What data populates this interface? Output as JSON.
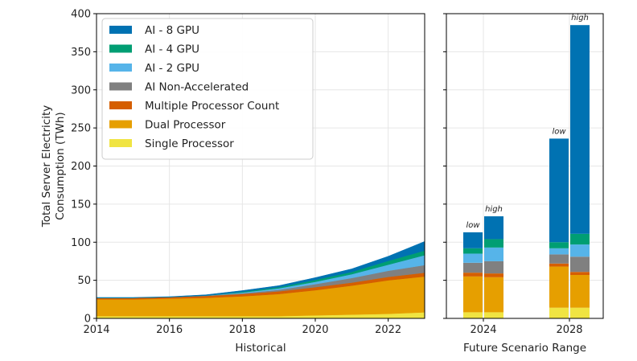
{
  "chart_data": [
    {
      "type": "area",
      "stacked": true,
      "xlabel": "Historical",
      "ylabel_lines": [
        "Total Server Electricity",
        "Consumption (TWh)"
      ],
      "xlim": [
        2014,
        2023
      ],
      "ylim": [
        0,
        400
      ],
      "x_ticks": [
        2014,
        2016,
        2018,
        2020,
        2022
      ],
      "y_ticks": [
        0,
        50,
        100,
        150,
        200,
        250,
        300,
        350,
        400
      ],
      "grid": true,
      "legend_position": "top-left",
      "x": [
        2014,
        2015,
        2016,
        2017,
        2018,
        2019,
        2020,
        2021,
        2022,
        2023
      ],
      "series": [
        {
          "name": "Single Processor",
          "color": "#f0e442",
          "values": [
            3,
            3,
            3,
            3,
            3,
            3,
            4,
            5,
            6,
            8
          ]
        },
        {
          "name": "Dual Processor",
          "color": "#e69f00",
          "values": [
            22,
            22,
            23,
            24,
            26,
            29,
            33,
            38,
            44,
            47
          ]
        },
        {
          "name": "Multiple Processor Count",
          "color": "#d55e00",
          "values": [
            2,
            2,
            2,
            2.5,
            3,
            3.5,
            4,
            4,
            4.5,
            5
          ]
        },
        {
          "name": "AI Non-Accelerated",
          "color": "#808080",
          "values": [
            0,
            0,
            0,
            0.5,
            1,
            2,
            4,
            6,
            8,
            10
          ]
        },
        {
          "name": "AI - 2 GPU",
          "color": "#56b4e9",
          "values": [
            0,
            0,
            0,
            0,
            1,
            2,
            3,
            5,
            8,
            13
          ]
        },
        {
          "name": "AI - 4 GPU",
          "color": "#009e73",
          "values": [
            0,
            0,
            0,
            0,
            1,
            1.5,
            2.5,
            3,
            5,
            6
          ]
        },
        {
          "name": "AI - 8 GPU",
          "color": "#0072b2",
          "values": [
            0.5,
            0.5,
            0.5,
            1,
            1.5,
            2,
            3,
            4,
            6,
            12
          ]
        }
      ]
    },
    {
      "type": "bar",
      "stacked": true,
      "xlabel": "Future Scenario Range",
      "ylim": [
        0,
        400
      ],
      "x_ticks": [
        2024,
        2028
      ],
      "grid": true,
      "bars": [
        {
          "year": 2024,
          "scenario": "low",
          "values": [
            8,
            47,
            5,
            13,
            12,
            7,
            21
          ]
        },
        {
          "year": 2024,
          "scenario": "high",
          "values": [
            8,
            46,
            5,
            16,
            18,
            11,
            30
          ]
        },
        {
          "year": 2028,
          "scenario": "low",
          "values": [
            14,
            54,
            4,
            12,
            8,
            8,
            136
          ]
        },
        {
          "year": 2028,
          "scenario": "high",
          "values": [
            14,
            43,
            4,
            20,
            16,
            14,
            274
          ]
        }
      ]
    }
  ],
  "legend": [
    {
      "label": "AI - 8 GPU",
      "color": "#0072b2"
    },
    {
      "label": "AI - 4 GPU",
      "color": "#009e73"
    },
    {
      "label": "AI - 2 GPU",
      "color": "#56b4e9"
    },
    {
      "label": "AI Non-Accelerated",
      "color": "#808080"
    },
    {
      "label": "Multiple Processor Count",
      "color": "#d55e00"
    },
    {
      "label": "Dual Processor",
      "color": "#e69f00"
    },
    {
      "label": "Single Processor",
      "color": "#f0e442"
    }
  ]
}
